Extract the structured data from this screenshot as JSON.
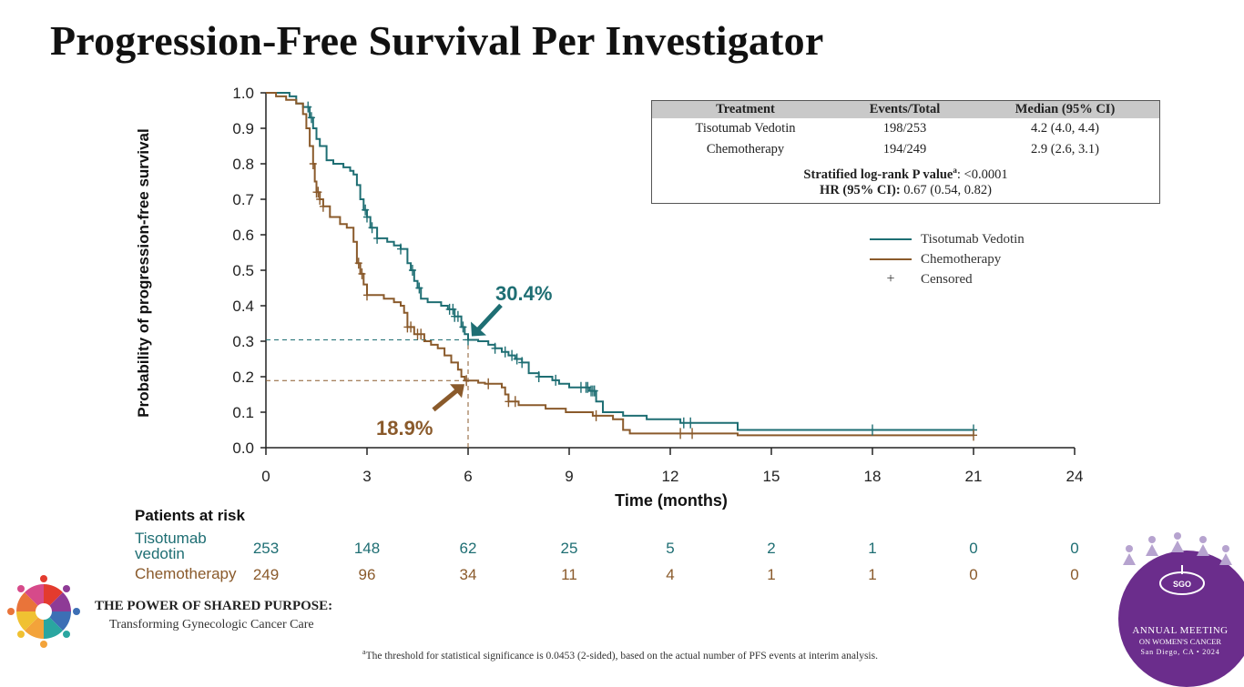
{
  "slide_title": "Progression-Free Survival Per Investigator",
  "chart_data": {
    "type": "line",
    "subtype": "kaplan-meier",
    "ylabel": "Probability of progression-free survival",
    "xlabel": "Time (months)",
    "xlim": [
      0,
      24
    ],
    "ylim": [
      0,
      1.0
    ],
    "xticks": [
      0,
      3,
      6,
      9,
      12,
      15,
      18,
      21,
      24
    ],
    "xtick_labels": [
      "0",
      "3",
      "6",
      "9",
      "12",
      "15",
      "18",
      "21",
      "24"
    ],
    "yticks": [
      0.0,
      0.1,
      0.2,
      0.3,
      0.4,
      0.5,
      0.6,
      0.7,
      0.8,
      0.9,
      1.0
    ],
    "ytick_labels": [
      "0.0",
      "0.1",
      "0.2",
      "0.3",
      "0.4",
      "0.5",
      "0.6",
      "0.7",
      "0.8",
      "0.9",
      "1.0"
    ],
    "grid": false,
    "legend_position": "right",
    "series": [
      {
        "name": "Tisotumab Vedotin",
        "color": "#1e6e73",
        "steps": [
          [
            0,
            1.0
          ],
          [
            0.5,
            1.0
          ],
          [
            0.7,
            0.99
          ],
          [
            0.9,
            0.97
          ],
          [
            1.1,
            0.96
          ],
          [
            1.3,
            0.93
          ],
          [
            1.4,
            0.9
          ],
          [
            1.5,
            0.87
          ],
          [
            1.6,
            0.85
          ],
          [
            1.8,
            0.81
          ],
          [
            2.0,
            0.8
          ],
          [
            2.3,
            0.79
          ],
          [
            2.5,
            0.78
          ],
          [
            2.6,
            0.77
          ],
          [
            2.7,
            0.74
          ],
          [
            2.8,
            0.7
          ],
          [
            2.9,
            0.67
          ],
          [
            3.0,
            0.65
          ],
          [
            3.1,
            0.62
          ],
          [
            3.3,
            0.59
          ],
          [
            3.6,
            0.58
          ],
          [
            3.8,
            0.57
          ],
          [
            4.0,
            0.56
          ],
          [
            4.2,
            0.52
          ],
          [
            4.3,
            0.5
          ],
          [
            4.4,
            0.47
          ],
          [
            4.5,
            0.45
          ],
          [
            4.6,
            0.42
          ],
          [
            4.8,
            0.41
          ],
          [
            5.0,
            0.41
          ],
          [
            5.2,
            0.4
          ],
          [
            5.4,
            0.39
          ],
          [
            5.6,
            0.37
          ],
          [
            5.8,
            0.34
          ],
          [
            5.9,
            0.32
          ],
          [
            6.0,
            0.304
          ],
          [
            6.3,
            0.3
          ],
          [
            6.6,
            0.29
          ],
          [
            6.8,
            0.28
          ],
          [
            7.0,
            0.27
          ],
          [
            7.2,
            0.26
          ],
          [
            7.4,
            0.25
          ],
          [
            7.6,
            0.24
          ],
          [
            7.8,
            0.21
          ],
          [
            8.1,
            0.2
          ],
          [
            8.5,
            0.19
          ],
          [
            8.7,
            0.18
          ],
          [
            9.0,
            0.17
          ],
          [
            9.6,
            0.16
          ],
          [
            9.8,
            0.13
          ],
          [
            10.0,
            0.1
          ],
          [
            10.6,
            0.09
          ],
          [
            11.3,
            0.08
          ],
          [
            12.3,
            0.07
          ],
          [
            14.0,
            0.05
          ],
          [
            21.0,
            0.05
          ]
        ],
        "censor_times": [
          1.25,
          1.35,
          2.95,
          3.0,
          3.15,
          3.3,
          4.0,
          4.35,
          4.55,
          5.45,
          5.55,
          5.6,
          5.7,
          5.85,
          6.0,
          6.8,
          7.1,
          7.3,
          7.45,
          7.6,
          8.1,
          8.6,
          9.35,
          9.5,
          9.55,
          9.65,
          9.7,
          9.75,
          12.4,
          12.6,
          18.0,
          21.0
        ],
        "landmark_label": "30.4%",
        "landmark_time": 6,
        "landmark_value": 0.304
      },
      {
        "name": "Chemotherapy",
        "color": "#8a5a2b",
        "steps": [
          [
            0,
            1.0
          ],
          [
            0.3,
            0.99
          ],
          [
            0.6,
            0.98
          ],
          [
            0.9,
            0.97
          ],
          [
            1.1,
            0.94
          ],
          [
            1.2,
            0.9
          ],
          [
            1.3,
            0.85
          ],
          [
            1.4,
            0.8
          ],
          [
            1.45,
            0.75
          ],
          [
            1.5,
            0.72
          ],
          [
            1.6,
            0.7
          ],
          [
            1.7,
            0.68
          ],
          [
            1.9,
            0.65
          ],
          [
            2.2,
            0.63
          ],
          [
            2.4,
            0.62
          ],
          [
            2.6,
            0.58
          ],
          [
            2.7,
            0.52
          ],
          [
            2.8,
            0.49
          ],
          [
            2.9,
            0.46
          ],
          [
            3.0,
            0.43
          ],
          [
            3.5,
            0.42
          ],
          [
            3.8,
            0.41
          ],
          [
            4.0,
            0.4
          ],
          [
            4.1,
            0.38
          ],
          [
            4.2,
            0.34
          ],
          [
            4.4,
            0.32
          ],
          [
            4.7,
            0.3
          ],
          [
            4.9,
            0.29
          ],
          [
            5.1,
            0.28
          ],
          [
            5.3,
            0.26
          ],
          [
            5.5,
            0.24
          ],
          [
            5.7,
            0.22
          ],
          [
            5.8,
            0.2
          ],
          [
            5.9,
            0.189
          ],
          [
            6.3,
            0.183
          ],
          [
            6.5,
            0.18
          ],
          [
            6.8,
            0.18
          ],
          [
            7.0,
            0.17
          ],
          [
            7.1,
            0.15
          ],
          [
            7.2,
            0.13
          ],
          [
            7.5,
            0.12
          ],
          [
            8.3,
            0.11
          ],
          [
            8.9,
            0.1
          ],
          [
            9.7,
            0.09
          ],
          [
            10.3,
            0.08
          ],
          [
            10.6,
            0.05
          ],
          [
            10.8,
            0.04
          ],
          [
            12.5,
            0.04
          ],
          [
            14.0,
            0.035
          ],
          [
            21.0,
            0.035
          ]
        ],
        "censor_times": [
          1.4,
          1.5,
          1.55,
          1.6,
          1.7,
          2.75,
          2.85,
          3.0,
          4.2,
          4.3,
          4.5,
          4.6,
          5.95,
          6.6,
          7.2,
          7.4,
          9.8,
          12.3,
          12.65,
          21.0
        ],
        "landmark_label": "18.9%",
        "landmark_time": 6,
        "landmark_value": 0.189
      }
    ]
  },
  "stats_table": {
    "headers": [
      "Treatment",
      "Events/Total",
      "Median (95% CI)"
    ],
    "rows": [
      {
        "treatment": "Tisotumab Vedotin",
        "events": "198/253",
        "median": "4.2 (4.0, 4.4)"
      },
      {
        "treatment": "Chemotherapy",
        "events": "194/249",
        "median": "2.9 (2.6, 3.1)"
      }
    ],
    "pvalue_label": "Stratified log-rank P value",
    "pvalue_sup": "a",
    "pvalue_value": ": <0.0001",
    "hr_label": "HR (95% CI):",
    "hr_value": " 0.67 (0.54, 0.82)"
  },
  "legend": {
    "tv": "Tisotumab Vedotin",
    "chemo": "Chemotherapy",
    "censor_symbol": "+",
    "censored": "Censored"
  },
  "annotations": {
    "tv": "30.4%",
    "chemo": "18.9%"
  },
  "risk_table": {
    "title": "Patients at risk",
    "tv_label": "Tisotumab vedotin",
    "chemo_label": "Chemotherapy",
    "times": [
      0,
      3,
      6,
      9,
      12,
      15,
      18,
      21,
      24
    ],
    "tv": [
      "253",
      "148",
      "62",
      "25",
      "5",
      "2",
      "1",
      "0",
      "0"
    ],
    "chemo": [
      "249",
      "96",
      "34",
      "11",
      "4",
      "1",
      "1",
      "0",
      "0"
    ]
  },
  "footnote": {
    "sup": "a",
    "text": "The threshold for statistical significance is 0.0453 (2-sided), based on the actual number of PFS events at interim analysis."
  },
  "branding": {
    "left_title": "THE POWER OF SHARED PURPOSE:",
    "left_subtitle": "Transforming Gynecologic Cancer Care",
    "sgo_mark": "SGO",
    "sgo_line1": "ANNUAL MEETING",
    "sgo_line2": "ON WOMEN'S CANCER",
    "sgo_line3": "San Diego, CA • 2024",
    "sgo_color": "#6b2d8c"
  }
}
